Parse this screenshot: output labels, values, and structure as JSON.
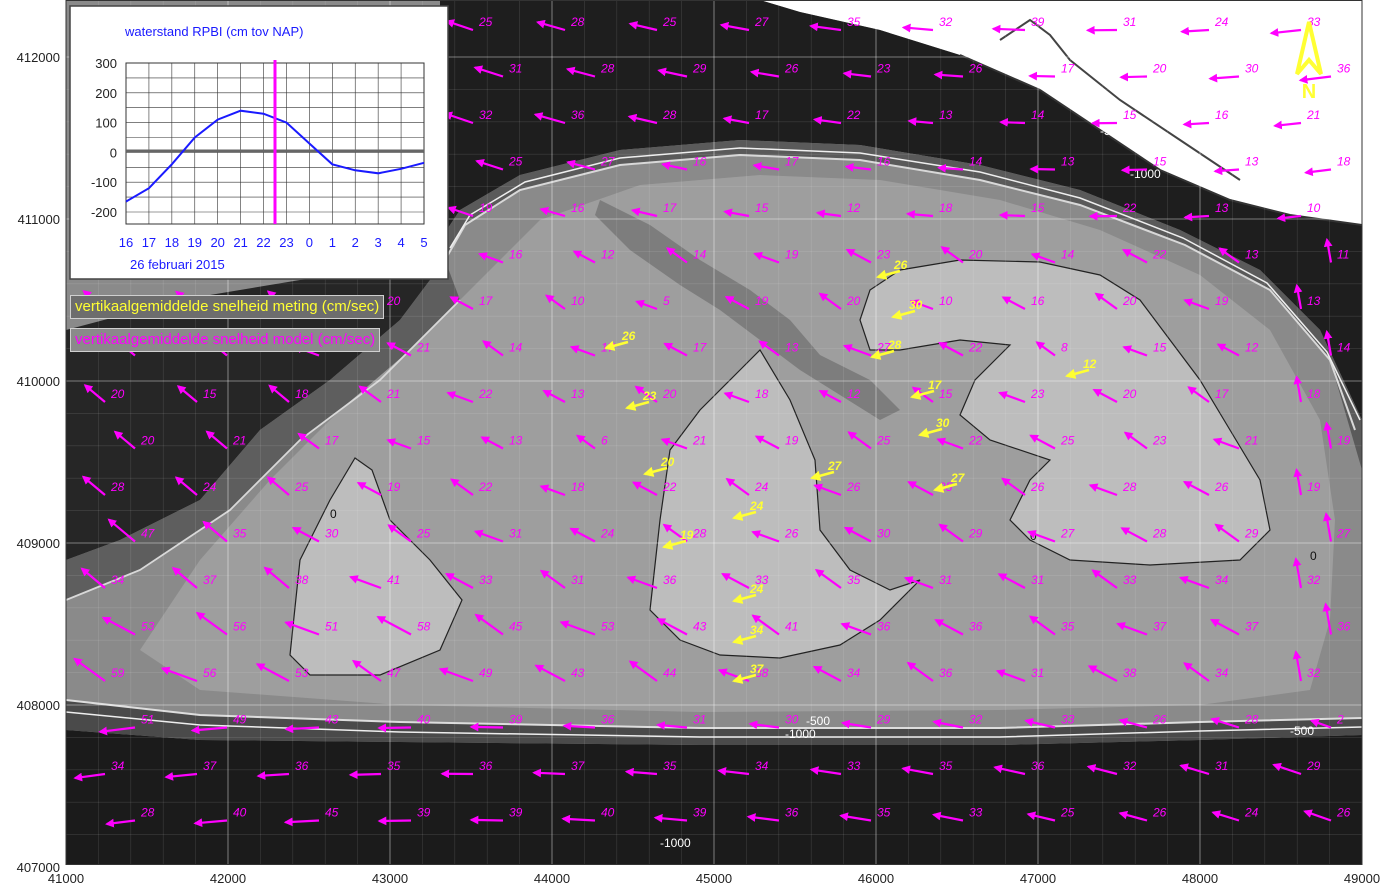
{
  "map": {
    "x_ticks": [
      "41000",
      "42000",
      "43000",
      "44000",
      "45000",
      "46000",
      "47000",
      "48000",
      "49000"
    ],
    "y_ticks": [
      "412000",
      "411000",
      "410000",
      "409000",
      "408000",
      "407000"
    ],
    "north_label": "N",
    "contour_labels": [
      "-500",
      "-1000",
      "-1000",
      "0",
      "0",
      "0",
      "-500",
      "-1000",
      "-500"
    ],
    "colors": {
      "model_vector": "#ff00ff",
      "measured_vector": "#ffff33",
      "deep_channel": "#1c1c1c",
      "shallow_plate": "#b8b8b8"
    }
  },
  "legend": {
    "measured": "vertikaalgemiddelde snelheid meting (cm/sec)",
    "model": "vertikaalgemiddelde snelheid model (cm/sec)"
  },
  "inset": {
    "title": "waterstand RPBI (cm tov NAP)",
    "y_ticks": [
      "300",
      "200",
      "100",
      "0",
      "-100",
      "-200"
    ],
    "x_ticks": [
      "16",
      "17",
      "18",
      "19",
      "20",
      "21",
      "22",
      "23",
      "0",
      "1",
      "2",
      "3",
      "4",
      "5"
    ],
    "date_label": "26 februari 2015",
    "current_time_label": "22:30",
    "chart_data": {
      "type": "line",
      "title": "waterstand RPBI (cm tov NAP)",
      "xlabel": "26 februari 2015",
      "ylabel": "",
      "ylim": [
        -250,
        300
      ],
      "x": [
        16,
        17,
        18,
        19,
        20,
        21,
        22,
        23,
        24,
        25,
        26,
        27,
        28,
        29
      ],
      "series": [
        {
          "values": [
            -165,
            -120,
            -40,
            50,
            110,
            140,
            130,
            100,
            30,
            -40,
            -60,
            -70,
            -55,
            -35
          ]
        }
      ],
      "marker_time": 22.5
    }
  },
  "measured_vectors": [
    {
      "v": "26"
    },
    {
      "v": "30"
    },
    {
      "v": "28"
    },
    {
      "v": "17"
    },
    {
      "v": "30"
    },
    {
      "v": "27"
    },
    {
      "v": "12"
    },
    {
      "v": "26"
    },
    {
      "v": "23"
    },
    {
      "v": "20"
    },
    {
      "v": "27"
    },
    {
      "v": "24"
    },
    {
      "v": "19"
    },
    {
      "v": "24"
    },
    {
      "v": "34"
    },
    {
      "v": "37"
    }
  ],
  "model_vectors": [
    {
      "v": "23"
    },
    {
      "v": "26"
    },
    {
      "v": "22"
    },
    {
      "v": "20"
    },
    {
      "v": "25"
    },
    {
      "v": "28"
    },
    {
      "v": "25"
    },
    {
      "v": "27"
    },
    {
      "v": "35"
    },
    {
      "v": "32"
    },
    {
      "v": "39"
    },
    {
      "v": "31"
    },
    {
      "v": "24"
    },
    {
      "v": "33"
    },
    {
      "v": "32"
    },
    {
      "v": "33"
    },
    {
      "v": "30"
    },
    {
      "v": "28"
    },
    {
      "v": "31"
    },
    {
      "v": "28"
    },
    {
      "v": "29"
    },
    {
      "v": "26"
    },
    {
      "v": "23"
    },
    {
      "v": "26"
    },
    {
      "v": "17"
    },
    {
      "v": "20"
    },
    {
      "v": "30"
    },
    {
      "v": "36"
    },
    {
      "v": "34"
    },
    {
      "v": "35"
    },
    {
      "v": "36"
    },
    {
      "v": "33"
    },
    {
      "v": "32"
    },
    {
      "v": "36"
    },
    {
      "v": "28"
    },
    {
      "v": "17"
    },
    {
      "v": "22"
    },
    {
      "v": "13"
    },
    {
      "v": "14"
    },
    {
      "v": "15"
    },
    {
      "v": "16"
    },
    {
      "v": "21"
    },
    {
      "v": "29"
    },
    {
      "v": "26"
    },
    {
      "v": "21"
    },
    {
      "v": "22"
    },
    {
      "v": "25"
    },
    {
      "v": "27"
    },
    {
      "v": "16"
    },
    {
      "v": "17"
    },
    {
      "v": "16"
    },
    {
      "v": "14"
    },
    {
      "v": "13"
    },
    {
      "v": "15"
    },
    {
      "v": "13"
    },
    {
      "v": "18"
    },
    {
      "v": "32"
    },
    {
      "v": "29"
    },
    {
      "v": "27"
    },
    {
      "v": "23"
    },
    {
      "v": "19"
    },
    {
      "v": "16"
    },
    {
      "v": "17"
    },
    {
      "v": "15"
    },
    {
      "v": "12"
    },
    {
      "v": "18"
    },
    {
      "v": "15"
    },
    {
      "v": "22"
    },
    {
      "v": "13"
    },
    {
      "v": "10"
    },
    {
      "v": "17"
    },
    {
      "v": "26"
    },
    {
      "v": "27"
    },
    {
      "v": "19"
    },
    {
      "v": "16"
    },
    {
      "v": "12"
    },
    {
      "v": "14"
    },
    {
      "v": "19"
    },
    {
      "v": "23"
    },
    {
      "v": "20"
    },
    {
      "v": "14"
    },
    {
      "v": "22"
    },
    {
      "v": "13"
    },
    {
      "v": "11"
    },
    {
      "v": "26"
    },
    {
      "v": "23"
    },
    {
      "v": "24"
    },
    {
      "v": "20"
    },
    {
      "v": "17"
    },
    {
      "v": "10"
    },
    {
      "v": "5"
    },
    {
      "v": "19"
    },
    {
      "v": "20"
    },
    {
      "v": "10"
    },
    {
      "v": "16"
    },
    {
      "v": "20"
    },
    {
      "v": "19"
    },
    {
      "v": "13"
    },
    {
      "v": "17"
    },
    {
      "v": "21"
    },
    {
      "v": "19"
    },
    {
      "v": "21"
    },
    {
      "v": "14"
    },
    {
      "v": "17"
    },
    {
      "v": "17"
    },
    {
      "v": "13"
    },
    {
      "v": "27"
    },
    {
      "v": "22"
    },
    {
      "v": "8"
    },
    {
      "v": "15"
    },
    {
      "v": "12"
    },
    {
      "v": "14"
    },
    {
      "v": "20"
    },
    {
      "v": "15"
    },
    {
      "v": "18"
    },
    {
      "v": "21"
    },
    {
      "v": "22"
    },
    {
      "v": "13"
    },
    {
      "v": "20"
    },
    {
      "v": "18"
    },
    {
      "v": "12"
    },
    {
      "v": "15"
    },
    {
      "v": "23"
    },
    {
      "v": "20"
    },
    {
      "v": "17"
    },
    {
      "v": "18"
    },
    {
      "v": "20"
    },
    {
      "v": "21"
    },
    {
      "v": "17"
    },
    {
      "v": "15"
    },
    {
      "v": "13"
    },
    {
      "v": "6"
    },
    {
      "v": "21"
    },
    {
      "v": "19"
    },
    {
      "v": "25"
    },
    {
      "v": "22"
    },
    {
      "v": "25"
    },
    {
      "v": "23"
    },
    {
      "v": "21"
    },
    {
      "v": "19"
    },
    {
      "v": "28"
    },
    {
      "v": "24"
    },
    {
      "v": "25"
    },
    {
      "v": "19"
    },
    {
      "v": "22"
    },
    {
      "v": "18"
    },
    {
      "v": "22"
    },
    {
      "v": "24"
    },
    {
      "v": "26"
    },
    {
      "v": "25"
    },
    {
      "v": "26"
    },
    {
      "v": "28"
    },
    {
      "v": "26"
    },
    {
      "v": "19"
    },
    {
      "v": "47"
    },
    {
      "v": "35"
    },
    {
      "v": "30"
    },
    {
      "v": "25"
    },
    {
      "v": "31"
    },
    {
      "v": "24"
    },
    {
      "v": "28"
    },
    {
      "v": "26"
    },
    {
      "v": "30"
    },
    {
      "v": "29"
    },
    {
      "v": "27"
    },
    {
      "v": "28"
    },
    {
      "v": "29"
    },
    {
      "v": "27"
    },
    {
      "v": "34"
    },
    {
      "v": "37"
    },
    {
      "v": "38"
    },
    {
      "v": "41"
    },
    {
      "v": "33"
    },
    {
      "v": "31"
    },
    {
      "v": "36"
    },
    {
      "v": "33"
    },
    {
      "v": "35"
    },
    {
      "v": "31"
    },
    {
      "v": "31"
    },
    {
      "v": "33"
    },
    {
      "v": "34"
    },
    {
      "v": "32"
    },
    {
      "v": "53"
    },
    {
      "v": "56"
    },
    {
      "v": "51"
    },
    {
      "v": "58"
    },
    {
      "v": "45"
    },
    {
      "v": "53"
    },
    {
      "v": "43"
    },
    {
      "v": "41"
    },
    {
      "v": "36"
    },
    {
      "v": "36"
    },
    {
      "v": "35"
    },
    {
      "v": "37"
    },
    {
      "v": "37"
    },
    {
      "v": "36"
    },
    {
      "v": "59"
    },
    {
      "v": "56"
    },
    {
      "v": "53"
    },
    {
      "v": "47"
    },
    {
      "v": "49"
    },
    {
      "v": "43"
    },
    {
      "v": "44"
    },
    {
      "v": "38"
    },
    {
      "v": "34"
    },
    {
      "v": "36"
    },
    {
      "v": "31"
    },
    {
      "v": "38"
    },
    {
      "v": "34"
    },
    {
      "v": "32"
    },
    {
      "v": "51"
    },
    {
      "v": "49"
    },
    {
      "v": "43"
    },
    {
      "v": "40"
    },
    {
      "v": "39"
    },
    {
      "v": "36"
    },
    {
      "v": "31"
    },
    {
      "v": "30"
    },
    {
      "v": "29"
    },
    {
      "v": "32"
    },
    {
      "v": "33"
    },
    {
      "v": "26"
    },
    {
      "v": "28"
    },
    {
      "v": "2"
    },
    {
      "v": "34"
    },
    {
      "v": "37"
    },
    {
      "v": "36"
    },
    {
      "v": "35"
    },
    {
      "v": "36"
    },
    {
      "v": "37"
    },
    {
      "v": "35"
    },
    {
      "v": "34"
    },
    {
      "v": "33"
    },
    {
      "v": "35"
    },
    {
      "v": "36"
    },
    {
      "v": "32"
    },
    {
      "v": "31"
    },
    {
      "v": "29"
    },
    {
      "v": "28"
    },
    {
      "v": "40"
    },
    {
      "v": "45"
    },
    {
      "v": "39"
    },
    {
      "v": "39"
    },
    {
      "v": "40"
    },
    {
      "v": "39"
    },
    {
      "v": "36"
    },
    {
      "v": "35"
    },
    {
      "v": "33"
    },
    {
      "v": "25"
    },
    {
      "v": "26"
    },
    {
      "v": "24"
    },
    {
      "v": "26"
    }
  ]
}
